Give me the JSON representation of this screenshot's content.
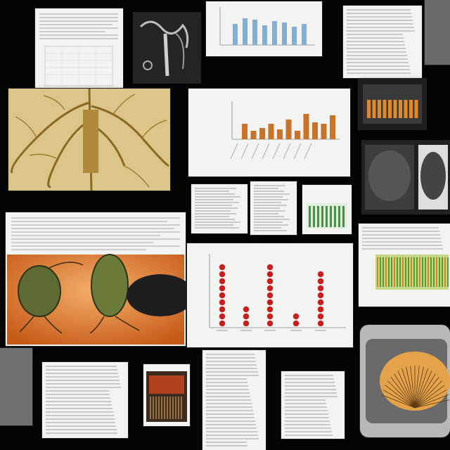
{
  "collage": {
    "background": "#050505",
    "tiles": [
      {
        "name": "text-sheet",
        "kind": "document"
      },
      {
        "name": "root-photo",
        "kind": "photo"
      },
      {
        "name": "blue-bar-chart",
        "kind": "chart"
      },
      {
        "name": "orange-bar-chart",
        "kind": "chart"
      },
      {
        "name": "red-dot-chart",
        "kind": "chart"
      },
      {
        "name": "pod-illustration",
        "kind": "photo"
      },
      {
        "name": "monitor-screens",
        "kind": "photo"
      }
    ]
  },
  "colors": {
    "paper": "#f3f3f1",
    "text_line": "#9a9a9a",
    "blue_bar": "#7fb0d9",
    "orange_bar": "#c8722a",
    "red_marker": "#c81e1e",
    "green_bar": "#3a9a3a",
    "root_yellow": "#c9a34a",
    "orange_photo": "#e07a2a",
    "pod_green": "#5f6a33"
  }
}
